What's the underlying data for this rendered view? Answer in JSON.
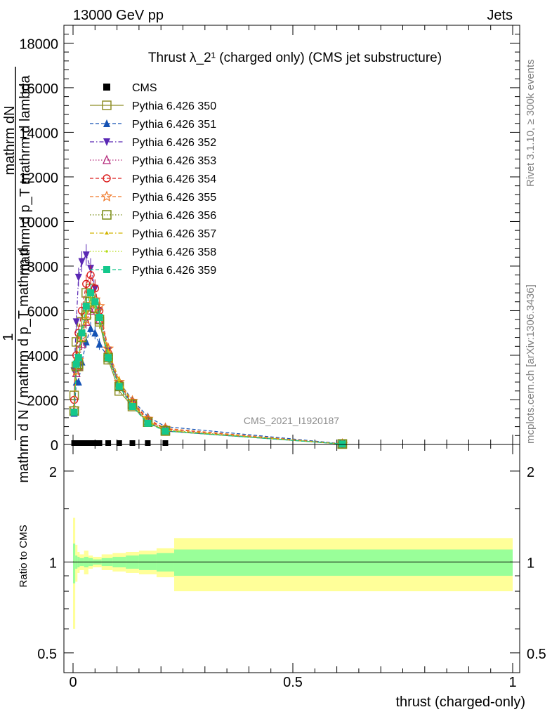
{
  "header": {
    "energy_label": "13000 GeV pp",
    "process_label": "Jets",
    "side_label_rivet": "Rivet 3.1.10, ≥ 300k events",
    "side_label_mcplots": "mcplots.cern.ch [arXiv:1306.3436]"
  },
  "chart_data": [
    {
      "type": "line",
      "title": "Thrust λ_2¹ (charged only) (CMS jet substructure)",
      "watermark": "CMS_2021_I1920187",
      "ylabel_lines": [
        "1",
        "mathrm d N",
        "mathrm dN",
        "mathrm d p_T mathrm d lambda",
        "mathrm d p_T mathrm d"
      ],
      "xlim": [
        0,
        1
      ],
      "ylim": [
        0,
        18800
      ],
      "yticks": [
        {
          "value": 0,
          "label": "0"
        },
        {
          "value": 2000,
          "label": "2000"
        },
        {
          "value": 4000,
          "label": "4000"
        },
        {
          "value": 6000,
          "label": "6000"
        },
        {
          "value": 8000,
          "label": "8000"
        },
        {
          "value": 10000,
          "label": "10000"
        },
        {
          "value": 12000,
          "label": "12000"
        },
        {
          "value": 14000,
          "label": "14000"
        },
        {
          "value": 16000,
          "label": "16000"
        },
        {
          "value": 18000,
          "label": "18000"
        }
      ],
      "legend_position": "top-left",
      "x": [
        0.0025,
        0.0075,
        0.0125,
        0.02,
        0.03,
        0.04,
        0.05,
        0.06,
        0.08,
        0.105,
        0.135,
        0.17,
        0.21,
        0.6125
      ],
      "series": [
        {
          "name": "CMS",
          "color": "#000000",
          "marker": "square-filled",
          "dash": "none",
          "values": [
            20,
            20,
            20,
            20,
            20,
            20,
            20,
            20,
            20,
            20,
            20,
            20,
            20,
            20
          ]
        },
        {
          "name": "Pythia 6.426 350",
          "color": "#8f8f28",
          "marker": "square-open",
          "dash": "solid",
          "values": [
            2200,
            4600,
            3500,
            5500,
            6800,
            7000,
            6100,
            5500,
            3800,
            2400,
            1700,
            1000,
            600,
            20
          ]
        },
        {
          "name": "Pythia 6.426 351",
          "color": "#1452b4",
          "marker": "triangle-up-filled",
          "dash": "dashed",
          "values": [
            1400,
            2800,
            2800,
            3700,
            4600,
            5200,
            5000,
            4500,
            3900,
            2800,
            2000,
            1250,
            800,
            30
          ]
        },
        {
          "name": "Pythia 6.426 352",
          "color": "#5a28b4",
          "marker": "triangle-down-filled",
          "dash": "dashdot",
          "values": [
            3300,
            5500,
            7500,
            8200,
            8500,
            7900,
            7000,
            6000,
            4200,
            2700,
            1800,
            1000,
            600,
            20
          ]
        },
        {
          "name": "Pythia 6.426 353",
          "color": "#b4287a",
          "marker": "triangle-up-open",
          "dash": "dotted",
          "values": [
            1500,
            3200,
            3500,
            4500,
            5500,
            6000,
            6100,
            5600,
            4000,
            2600,
            1800,
            1050,
            650,
            20
          ]
        },
        {
          "name": "Pythia 6.426 354",
          "color": "#dc1e1e",
          "marker": "circle-open",
          "dash": "dashed",
          "values": [
            2000,
            4000,
            5000,
            6000,
            7200,
            7600,
            7000,
            6000,
            4100,
            2700,
            1900,
            1100,
            700,
            20
          ]
        },
        {
          "name": "Pythia 6.426 355",
          "color": "#f07828",
          "marker": "star-open",
          "dash": "dashed",
          "values": [
            1600,
            3300,
            3800,
            4800,
            5600,
            6300,
            6500,
            6200,
            4300,
            2800,
            1950,
            1150,
            720,
            20
          ]
        },
        {
          "name": "Pythia 6.426 356",
          "color": "#788c14",
          "marker": "square-open",
          "dash": "dotted",
          "values": [
            1500,
            3500,
            3600,
            4800,
            5800,
            6400,
            6100,
            5600,
            3900,
            2600,
            1800,
            1000,
            620,
            20
          ]
        },
        {
          "name": "Pythia 6.426 357",
          "color": "#d2b400",
          "marker": "tri-small",
          "dash": "dashdot",
          "values": [
            1550,
            3600,
            3800,
            5000,
            6000,
            6600,
            6300,
            5700,
            4200,
            2900,
            1850,
            1050,
            650,
            20
          ]
        },
        {
          "name": "Pythia 6.426 358",
          "color": "#b4dc14",
          "marker": "dot",
          "dash": "dotted",
          "values": [
            1500,
            3500,
            3700,
            4900,
            5900,
            6500,
            6200,
            5600,
            4000,
            2750,
            1800,
            1000,
            630,
            20
          ]
        },
        {
          "name": "Pythia 6.426 359",
          "color": "#14c88c",
          "marker": "square-filled",
          "dash": "dashed",
          "values": [
            1450,
            3600,
            3900,
            5000,
            6200,
            6800,
            6400,
            5700,
            3900,
            2600,
            1700,
            950,
            600,
            20
          ]
        }
      ]
    },
    {
      "type": "area",
      "ylabel": "Ratio to CMS",
      "xlabel": "thrust (charged-only)",
      "xlim": [
        0,
        1
      ],
      "ylim": [
        0.43,
        2.45
      ],
      "log_scale": true,
      "xticks": [
        {
          "value": 0,
          "label": "0"
        },
        {
          "value": 0.5,
          "label": "0.5"
        },
        {
          "value": 1,
          "label": "1"
        }
      ],
      "yticks": [
        {
          "value": 0.5,
          "label": "0.5"
        },
        {
          "value": 1,
          "label": "1"
        },
        {
          "value": 2,
          "label": "2"
        }
      ],
      "bins": [
        {
          "lo": 0.0,
          "hi": 0.005,
          "stat": 0.15,
          "total": 0.4
        },
        {
          "lo": 0.005,
          "hi": 0.01,
          "stat": 0.05,
          "total": 0.14
        },
        {
          "lo": 0.01,
          "hi": 0.015,
          "stat": 0.04,
          "total": 0.08
        },
        {
          "lo": 0.015,
          "hi": 0.025,
          "stat": 0.03,
          "total": 0.06
        },
        {
          "lo": 0.025,
          "hi": 0.035,
          "stat": 0.04,
          "total": 0.09
        },
        {
          "lo": 0.035,
          "hi": 0.045,
          "stat": 0.03,
          "total": 0.05
        },
        {
          "lo": 0.045,
          "hi": 0.065,
          "stat": 0.02,
          "total": 0.04
        },
        {
          "lo": 0.065,
          "hi": 0.09,
          "stat": 0.03,
          "total": 0.06
        },
        {
          "lo": 0.09,
          "hi": 0.12,
          "stat": 0.04,
          "total": 0.07
        },
        {
          "lo": 0.12,
          "hi": 0.15,
          "stat": 0.05,
          "total": 0.08
        },
        {
          "lo": 0.15,
          "hi": 0.19,
          "stat": 0.06,
          "total": 0.09
        },
        {
          "lo": 0.19,
          "hi": 0.23,
          "stat": 0.07,
          "total": 0.11
        },
        {
          "lo": 0.23,
          "hi": 1.0,
          "stat": 0.1,
          "total": 0.2
        }
      ],
      "reference": 1
    }
  ]
}
